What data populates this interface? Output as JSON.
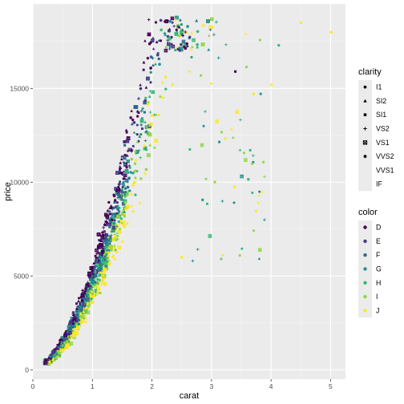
{
  "chart_data": {
    "type": "scatter",
    "xlabel": "carat",
    "ylabel": "price",
    "xlim": [
      0,
      5.25
    ],
    "ylim": [
      -500,
      19500
    ],
    "x_ticks": [
      0,
      1,
      2,
      3,
      4,
      5
    ],
    "x_tick_labels": [
      "0",
      "1",
      "2",
      "3",
      "4",
      "5"
    ],
    "y_ticks": [
      0,
      5000,
      10000,
      15000
    ],
    "y_tick_labels": [
      "0",
      "5000",
      "10000",
      "15000"
    ],
    "grid": true,
    "legend_position": "right",
    "legends": [
      {
        "title": "clarity",
        "aesthetic": "shape",
        "items": [
          {
            "label": "I1",
            "shape": "circle"
          },
          {
            "label": "SI2",
            "shape": "triangle"
          },
          {
            "label": "SI1",
            "shape": "square"
          },
          {
            "label": "VS2",
            "shape": "plus"
          },
          {
            "label": "VS1",
            "shape": "boxed-x"
          },
          {
            "label": "VVS2",
            "shape": "asterisk"
          },
          {
            "label": "VVS1",
            "shape": "none"
          },
          {
            "label": "IF",
            "shape": "none"
          }
        ]
      },
      {
        "title": "color",
        "aesthetic": "color",
        "items": [
          {
            "label": "D",
            "color": "#440154"
          },
          {
            "label": "E",
            "color": "#443A83"
          },
          {
            "label": "F",
            "color": "#31688E"
          },
          {
            "label": "G",
            "color": "#21908D"
          },
          {
            "label": "H",
            "color": "#35B779"
          },
          {
            "label": "I",
            "color": "#8FD744"
          },
          {
            "label": "J",
            "color": "#FDE725"
          }
        ]
      }
    ],
    "series_note": "price vs carat scatter, one point per diamond",
    "points_sample": [
      {
        "x": 4.5,
        "y": 18500,
        "color": "J",
        "clarity": "I1"
      },
      {
        "x": 5.01,
        "y": 18000,
        "color": "J",
        "clarity": "I1"
      },
      {
        "x": 4.01,
        "y": 15200,
        "color": "J",
        "clarity": "I1"
      },
      {
        "x": 4.13,
        "y": 17300,
        "color": "H",
        "clarity": "I1"
      },
      {
        "x": 3.4,
        "y": 15900,
        "color": "D",
        "clarity": "SI1"
      },
      {
        "x": 3.01,
        "y": 18700,
        "color": "I",
        "clarity": "SI2"
      },
      {
        "x": 3.65,
        "y": 11700,
        "color": "H",
        "clarity": "I1"
      },
      {
        "x": 2.5,
        "y": 6000,
        "color": "J",
        "clarity": "SI1"
      },
      {
        "x": 0.23,
        "y": 326,
        "color": "E",
        "clarity": "SI2"
      },
      {
        "x": 1.0,
        "y": 5000,
        "color": "G",
        "clarity": "VS2"
      }
    ]
  }
}
